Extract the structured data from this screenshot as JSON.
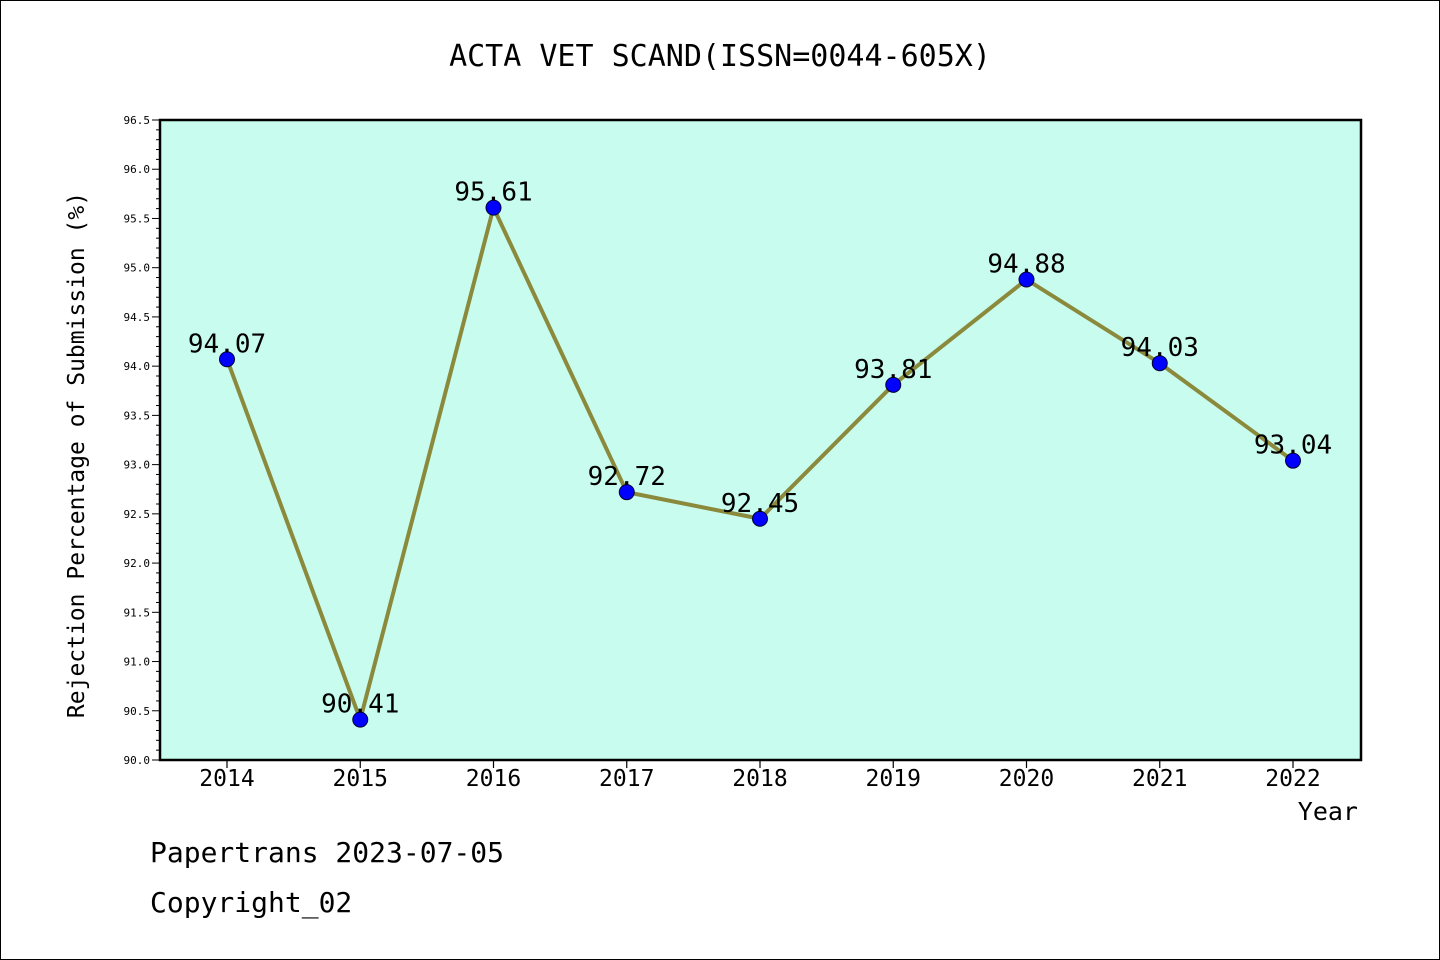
{
  "colors": {
    "plot_background": "#c8fcee",
    "line": "#8b8a3c",
    "marker": "#0000ff",
    "text": "#000000"
  },
  "chart_data": {
    "type": "line",
    "title": "ACTA VET SCAND(ISSN=0044-605X)",
    "xlabel": "Year",
    "ylabel": "Rejection Percentage of Submission (%)",
    "categories": [
      "2014",
      "2015",
      "2016",
      "2017",
      "2018",
      "2019",
      "2020",
      "2021",
      "2022"
    ],
    "values": [
      94.07,
      90.41,
      95.61,
      92.72,
      92.45,
      93.81,
      94.88,
      94.03,
      93.04
    ],
    "data_labels": [
      "94.07",
      "90.41",
      "95.61",
      "92.72",
      "92.45",
      "93.81",
      "94.88",
      "94.03",
      "93.04"
    ],
    "ylim": [
      90.0,
      96.5
    ],
    "yticks": [
      "90.0",
      "90.5",
      "91.0",
      "91.5",
      "92.0",
      "92.5",
      "93.0",
      "93.5",
      "94.0",
      "94.5",
      "95.0",
      "95.5",
      "96.0",
      "96.5"
    ],
    "grid": false,
    "legend": "none"
  },
  "footer": {
    "line1": "Papertrans 2023-07-05",
    "line2": "Copyright_02"
  }
}
